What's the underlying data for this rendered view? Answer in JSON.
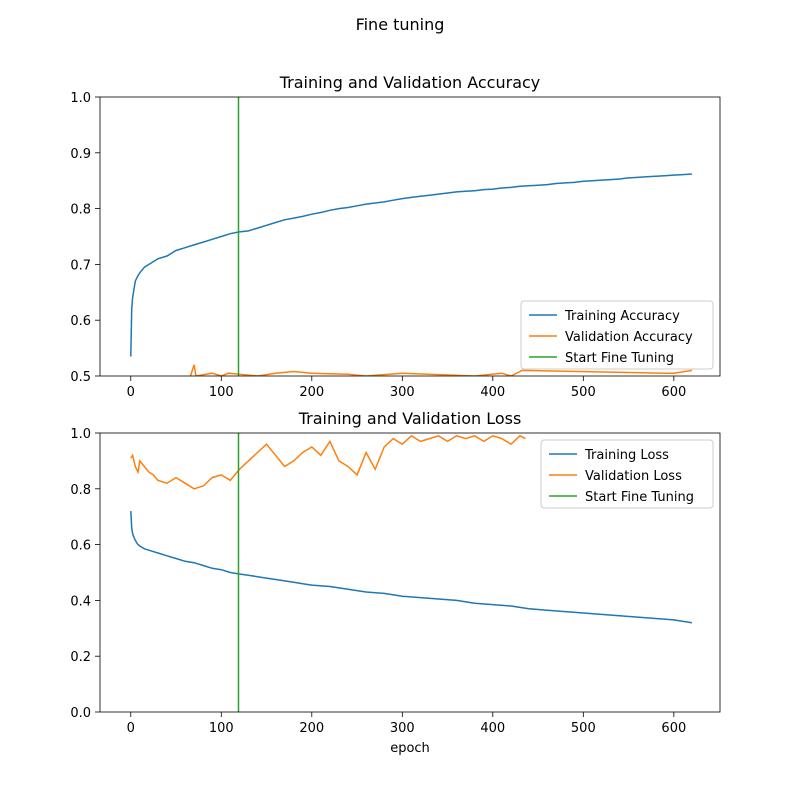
{
  "figure": {
    "suptitle": "Fine tuning",
    "colors": {
      "training": "#1f77b4",
      "validation": "#ff7f0e",
      "fine_tune": "#2ca02c",
      "frame": "#000000",
      "legend_border": "#cccccc"
    }
  },
  "chart_data": [
    {
      "type": "line",
      "title": "Training and Validation Accuracy",
      "xlabel": "",
      "ylabel": "",
      "xlim": [
        -34,
        651
      ],
      "ylim": [
        0.5,
        1.0
      ],
      "xticks": [
        "0",
        "100",
        "200",
        "300",
        "400",
        "500",
        "600"
      ],
      "yticks": [
        "0.5",
        "0.6",
        "0.7",
        "0.8",
        "0.9",
        "1.0"
      ],
      "grid": false,
      "legend": "lower-right",
      "fine_tune_epoch": 119,
      "series": [
        {
          "name": "Training Accuracy",
          "x": [
            0,
            1,
            2,
            3,
            5,
            8,
            10,
            15,
            20,
            25,
            30,
            40,
            50,
            60,
            70,
            80,
            90,
            100,
            110,
            119,
            130,
            140,
            150,
            160,
            170,
            180,
            190,
            200,
            210,
            220,
            230,
            240,
            250,
            260,
            270,
            280,
            290,
            300,
            310,
            320,
            330,
            340,
            350,
            360,
            370,
            380,
            390,
            400,
            410,
            420,
            430,
            440,
            450,
            460,
            470,
            480,
            490,
            500,
            510,
            520,
            530,
            540,
            550,
            560,
            570,
            580,
            590,
            600,
            610,
            620
          ],
          "y": [
            0.535,
            0.62,
            0.64,
            0.65,
            0.67,
            0.68,
            0.685,
            0.695,
            0.7,
            0.705,
            0.71,
            0.715,
            0.725,
            0.73,
            0.735,
            0.74,
            0.745,
            0.75,
            0.755,
            0.758,
            0.76,
            0.765,
            0.77,
            0.775,
            0.78,
            0.783,
            0.786,
            0.79,
            0.793,
            0.797,
            0.8,
            0.802,
            0.805,
            0.808,
            0.81,
            0.812,
            0.815,
            0.818,
            0.82,
            0.822,
            0.824,
            0.826,
            0.828,
            0.83,
            0.831,
            0.832,
            0.834,
            0.835,
            0.837,
            0.838,
            0.84,
            0.841,
            0.842,
            0.843,
            0.845,
            0.846,
            0.847,
            0.849,
            0.85,
            0.851,
            0.852,
            0.853,
            0.855,
            0.856,
            0.857,
            0.858,
            0.859,
            0.86,
            0.861,
            0.862
          ]
        },
        {
          "name": "Validation Accuracy",
          "x": [
            66,
            70,
            72,
            90,
            100,
            108,
            120,
            140,
            160,
            180,
            200,
            240,
            260,
            300,
            380,
            410,
            420,
            430,
            432,
            590,
            600,
            620
          ],
          "y": [
            0.5,
            0.52,
            0.5,
            0.505,
            0.5,
            0.505,
            0.503,
            0.5,
            0.505,
            0.508,
            0.505,
            0.503,
            0.5,
            0.505,
            0.5,
            0.505,
            0.5,
            0.508,
            0.51,
            0.505,
            0.505,
            0.51
          ]
        }
      ]
    },
    {
      "type": "line",
      "title": "Training and Validation Loss",
      "xlabel": "epoch",
      "ylabel": "",
      "xlim": [
        -34,
        651
      ],
      "ylim": [
        0.0,
        1.0
      ],
      "xticks": [
        "0",
        "100",
        "200",
        "300",
        "400",
        "500",
        "600"
      ],
      "yticks": [
        "0.0",
        "0.2",
        "0.4",
        "0.6",
        "0.8",
        "1.0"
      ],
      "grid": false,
      "legend": "upper-right",
      "fine_tune_epoch": 119,
      "series": [
        {
          "name": "Training Loss",
          "x": [
            0,
            1,
            2,
            3,
            5,
            8,
            10,
            15,
            20,
            30,
            40,
            50,
            60,
            70,
            80,
            90,
            100,
            110,
            119,
            130,
            140,
            150,
            160,
            170,
            180,
            190,
            200,
            220,
            240,
            260,
            280,
            300,
            320,
            340,
            360,
            380,
            400,
            420,
            440,
            460,
            480,
            500,
            520,
            540,
            560,
            580,
            600,
            620
          ],
          "y": [
            0.72,
            0.66,
            0.64,
            0.63,
            0.615,
            0.6,
            0.595,
            0.585,
            0.58,
            0.57,
            0.56,
            0.55,
            0.54,
            0.535,
            0.525,
            0.515,
            0.51,
            0.5,
            0.495,
            0.49,
            0.485,
            0.48,
            0.475,
            0.47,
            0.465,
            0.46,
            0.455,
            0.45,
            0.44,
            0.43,
            0.425,
            0.415,
            0.41,
            0.405,
            0.4,
            0.39,
            0.385,
            0.38,
            0.37,
            0.365,
            0.36,
            0.355,
            0.35,
            0.345,
            0.34,
            0.335,
            0.33,
            0.32
          ]
        },
        {
          "name": "Validation Loss",
          "x": [
            0,
            2,
            5,
            8,
            10,
            15,
            20,
            25,
            30,
            40,
            50,
            60,
            70,
            80,
            90,
            100,
            110,
            120,
            130,
            140,
            150,
            160,
            170,
            180,
            190,
            200,
            210,
            220,
            230,
            240,
            250,
            260,
            270,
            280,
            290,
            300,
            310,
            320,
            330,
            340,
            350,
            360,
            370,
            380,
            390,
            400,
            410,
            420,
            430,
            436
          ],
          "y": [
            0.91,
            0.92,
            0.88,
            0.86,
            0.9,
            0.88,
            0.86,
            0.85,
            0.83,
            0.82,
            0.84,
            0.82,
            0.8,
            0.81,
            0.84,
            0.85,
            0.83,
            0.87,
            0.9,
            0.93,
            0.96,
            0.92,
            0.88,
            0.9,
            0.93,
            0.95,
            0.92,
            0.97,
            0.9,
            0.88,
            0.85,
            0.93,
            0.87,
            0.95,
            0.98,
            0.96,
            0.99,
            0.97,
            0.98,
            0.99,
            0.97,
            0.99,
            0.98,
            0.99,
            0.97,
            0.99,
            0.98,
            0.96,
            0.99,
            0.98
          ]
        }
      ]
    }
  ]
}
